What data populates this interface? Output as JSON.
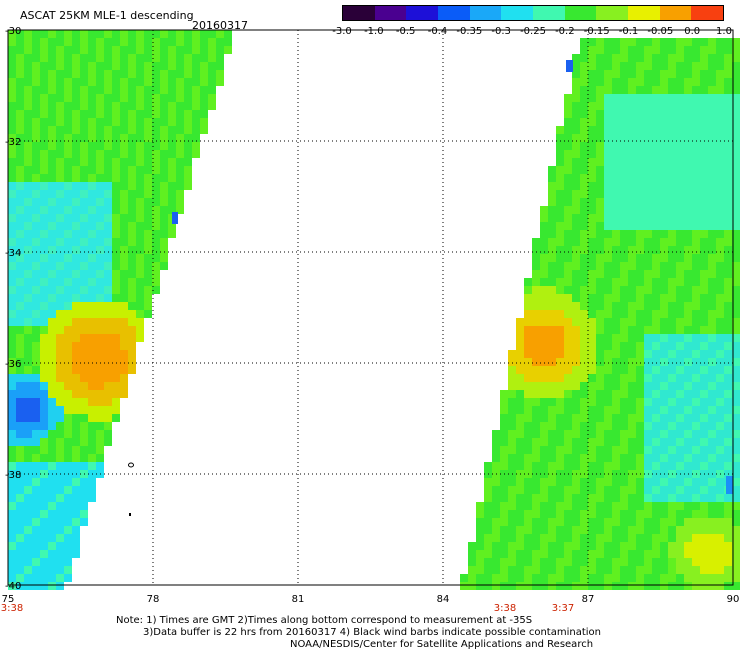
{
  "header": {
    "title": "ASCAT 25KM MLE-1 descending",
    "date": "20160317"
  },
  "colorbar": {
    "labels": [
      "-3.0",
      "-1.0",
      "-0.5",
      "-0.4",
      "-0.35",
      "-0.3",
      "-0.25",
      "-0.2",
      "-0.15",
      "-0.1",
      "-0.05",
      "0.0",
      "1.0"
    ],
    "colors": [
      "#2a0038",
      "#4a0090",
      "#1d10d8",
      "#0a5cf8",
      "#1aa8f8",
      "#20e0f0",
      "#40f8b0",
      "#38e830",
      "#88f020",
      "#e8f000",
      "#f8a000",
      "#f84010"
    ]
  },
  "axes": {
    "lon_ticks": [
      "75",
      "78",
      "81",
      "84",
      "87",
      "90"
    ],
    "lat_ticks": [
      "-30",
      "-32",
      "-34",
      "-36",
      "-38",
      "-40"
    ],
    "lon_range": [
      75,
      90
    ],
    "lat_range": [
      -30,
      -40
    ],
    "grid": true,
    "grid_style": "dotted"
  },
  "swath_times": [
    {
      "text": "3:38",
      "lon": 75.0
    },
    {
      "text": "3:38",
      "lon": 85.2
    },
    {
      "text": "3:37",
      "lon": 86.4
    }
  ],
  "notes": {
    "line1": "Note: 1) Times are GMT 2)Times along bottom correspond to measurement at -35S",
    "line2": "3)Data buffer is 22 hrs from 20160317 4) Black wind barbs indicate possible contamination",
    "line3": "NOAA/NESDIS/Center for Satellite Applications and Research"
  },
  "colors": {
    "time_label": "#cc2200",
    "grid": "#000000",
    "no_data": "#ffffff"
  }
}
